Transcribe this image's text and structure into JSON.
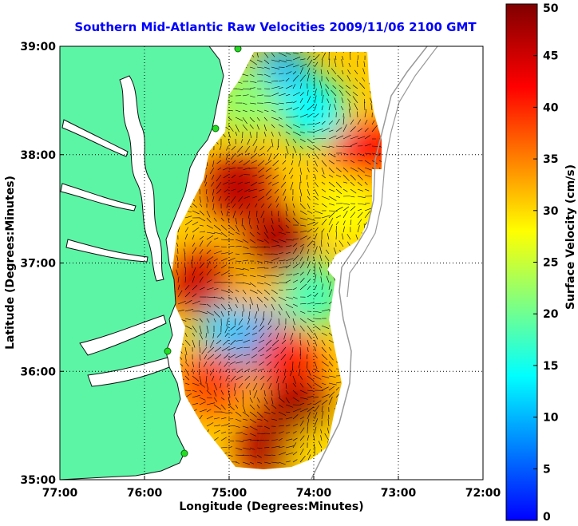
{
  "title": "Southern Mid-Atlantic Raw Velocities 2009/11/06 2100 GMT",
  "x_axis": {
    "label": "Longitude (Degrees:Minutes)",
    "ticks": [
      "77:00",
      "76:00",
      "75:00",
      "74:00",
      "73:00",
      "72:00"
    ]
  },
  "y_axis": {
    "label": "Latitude (Degrees:Minutes)",
    "ticks": [
      "39:00",
      "38:00",
      "37:00",
      "36:00",
      "35:00"
    ]
  },
  "colorbar": {
    "label": "Surface Velocity (cm/s)",
    "ticks": [
      "50",
      "45",
      "40",
      "35",
      "30",
      "25",
      "20",
      "15",
      "10",
      "5",
      "0"
    ],
    "colormap": [
      "#0000ff",
      "#0080ff",
      "#00ffff",
      "#80ff80",
      "#ffff00",
      "#ff8000",
      "#ff0000",
      "#800000"
    ]
  },
  "chart_data": {
    "type": "heatmap",
    "title": "Southern Mid-Atlantic Raw Velocities 2009/11/06 2100 GMT",
    "xlabel": "Longitude (Degrees:Minutes)",
    "ylabel": "Latitude (Degrees:Minutes)",
    "xlim": [
      -77,
      -72
    ],
    "ylim": [
      35,
      39
    ],
    "value_label": "Surface Velocity (cm/s)",
    "value_range": [
      0,
      50
    ],
    "grid": true,
    "land_color": "#5cf5a6",
    "velocity_regions": [
      {
        "lon": -74.4,
        "lat": 38.7,
        "speed": 10
      },
      {
        "lon": -74.0,
        "lat": 38.4,
        "speed": 14
      },
      {
        "lon": -74.8,
        "lat": 38.5,
        "speed": 22
      },
      {
        "lon": -73.4,
        "lat": 38.0,
        "speed": 42
      },
      {
        "lon": -73.6,
        "lat": 37.5,
        "speed": 28
      },
      {
        "lon": -74.9,
        "lat": 37.7,
        "speed": 46
      },
      {
        "lon": -74.4,
        "lat": 37.2,
        "speed": 47
      },
      {
        "lon": -75.3,
        "lat": 36.8,
        "speed": 45
      },
      {
        "lon": -74.7,
        "lat": 36.6,
        "speed": 32
      },
      {
        "lon": -74.0,
        "lat": 36.7,
        "speed": 18
      },
      {
        "lon": -75.0,
        "lat": 36.3,
        "speed": 12
      },
      {
        "lon": -74.6,
        "lat": 36.25,
        "speed": 10
      },
      {
        "lon": -74.3,
        "lat": 36.1,
        "speed": 40
      },
      {
        "lon": -75.2,
        "lat": 35.9,
        "speed": 38
      },
      {
        "lon": -74.2,
        "lat": 35.6,
        "speed": 48
      },
      {
        "lon": -74.5,
        "lat": 35.3,
        "speed": 47
      },
      {
        "lon": -73.9,
        "lat": 35.2,
        "speed": 30
      }
    ]
  }
}
